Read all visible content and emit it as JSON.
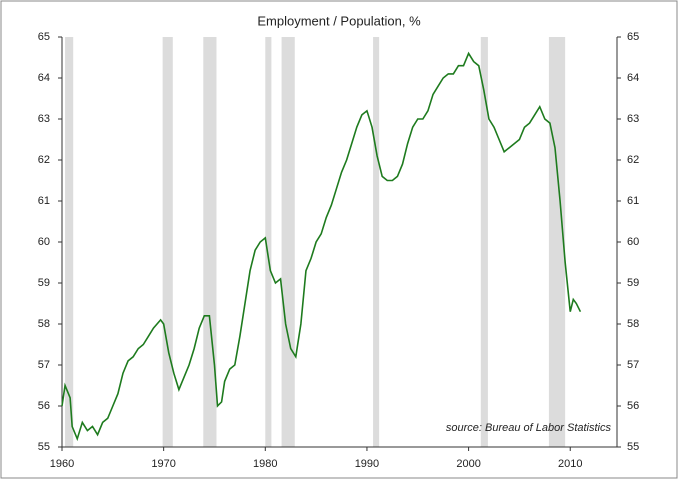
{
  "chart_data": {
    "type": "line",
    "title": "Employment / Population, %",
    "annotation": "source: Bureau of Labor Statistics",
    "x": [
      1960.0,
      1960.3,
      1960.8,
      1961.0,
      1961.5,
      1962.0,
      1962.5,
      1963.0,
      1963.5,
      1964.0,
      1964.5,
      1965.0,
      1965.5,
      1966.0,
      1966.5,
      1967.0,
      1967.5,
      1968.0,
      1968.5,
      1969.0,
      1969.7,
      1970.0,
      1970.5,
      1971.0,
      1971.5,
      1972.0,
      1972.5,
      1973.0,
      1973.5,
      1974.0,
      1974.5,
      1975.0,
      1975.3,
      1975.7,
      1976.0,
      1976.5,
      1977.0,
      1977.5,
      1978.0,
      1978.5,
      1979.0,
      1979.5,
      1980.0,
      1980.5,
      1981.0,
      1981.5,
      1982.0,
      1982.5,
      1983.0,
      1983.5,
      1984.0,
      1984.5,
      1985.0,
      1985.5,
      1986.0,
      1986.5,
      1987.0,
      1987.5,
      1988.0,
      1988.5,
      1989.0,
      1989.5,
      1990.0,
      1990.5,
      1991.0,
      1991.5,
      1992.0,
      1992.5,
      1993.0,
      1993.5,
      1994.0,
      1994.5,
      1995.0,
      1995.5,
      1996.0,
      1996.5,
      1997.0,
      1997.5,
      1998.0,
      1998.5,
      1999.0,
      1999.5,
      2000.0,
      2000.5,
      2001.0,
      2001.5,
      2002.0,
      2002.5,
      2003.0,
      2003.5,
      2004.0,
      2004.5,
      2005.0,
      2005.5,
      2006.0,
      2006.5,
      2007.0,
      2007.5,
      2008.0,
      2008.5,
      2009.0,
      2009.5,
      2010.0,
      2010.3,
      2010.6,
      2011.0
    ],
    "series": [
      {
        "name": "Employment / Population",
        "color": "#1e7b1e",
        "values": [
          56.0,
          56.5,
          56.2,
          55.5,
          55.2,
          55.6,
          55.4,
          55.5,
          55.3,
          55.6,
          55.7,
          56.0,
          56.3,
          56.8,
          57.1,
          57.2,
          57.4,
          57.5,
          57.7,
          57.9,
          58.1,
          58.0,
          57.3,
          56.8,
          56.4,
          56.7,
          57.0,
          57.4,
          57.9,
          58.2,
          58.2,
          57.0,
          56.0,
          56.1,
          56.6,
          56.9,
          57.0,
          57.7,
          58.5,
          59.3,
          59.8,
          60.0,
          60.1,
          59.3,
          59.0,
          59.1,
          58.0,
          57.4,
          57.2,
          58.0,
          59.3,
          59.6,
          60.0,
          60.2,
          60.6,
          60.9,
          61.3,
          61.7,
          62.0,
          62.4,
          62.8,
          63.1,
          63.2,
          62.8,
          62.1,
          61.6,
          61.5,
          61.5,
          61.6,
          61.9,
          62.4,
          62.8,
          63.0,
          63.0,
          63.2,
          63.6,
          63.8,
          64.0,
          64.1,
          64.1,
          64.3,
          64.3,
          64.6,
          64.4,
          64.3,
          63.7,
          63.0,
          62.8,
          62.5,
          62.2,
          62.3,
          62.4,
          62.5,
          62.8,
          62.9,
          63.1,
          63.3,
          63.0,
          62.9,
          62.3,
          61.0,
          59.5,
          58.3,
          58.6,
          58.5,
          58.3
        ]
      }
    ],
    "recessions": [
      [
        1960.3,
        1961.1
      ],
      [
        1969.9,
        1970.9
      ],
      [
        1973.9,
        1975.2
      ],
      [
        1980.0,
        1980.6
      ],
      [
        1981.6,
        1982.9
      ],
      [
        1990.6,
        1991.2
      ],
      [
        2001.2,
        2001.9
      ],
      [
        2007.9,
        2009.5
      ]
    ],
    "recession_color": "#dcdcdc",
    "xlim": [
      1960,
      2014.6
    ],
    "xticks": [
      1960,
      1970,
      1980,
      1990,
      2000,
      2010
    ],
    "ylim": [
      55,
      65
    ],
    "yticks": [
      55,
      56,
      57,
      58,
      59,
      60,
      61,
      62,
      63,
      64,
      65
    ],
    "y2lim": [
      55,
      65
    ],
    "y2ticks": [
      55,
      56,
      57,
      58,
      59,
      60,
      61,
      62,
      63,
      64,
      65
    ]
  }
}
